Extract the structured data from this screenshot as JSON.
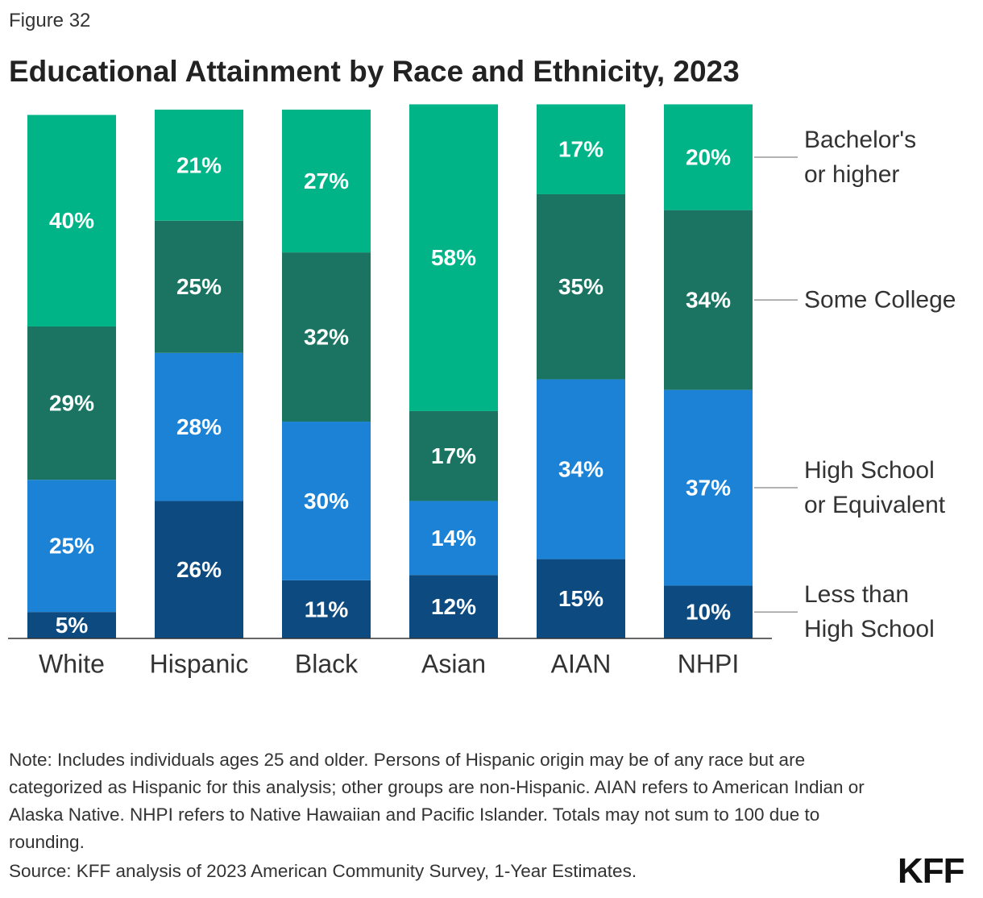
{
  "chart_data": {
    "type": "stacked_bar",
    "figure_label": "Figure 32",
    "title": "Educational Attainment by Race and Ethnicity, 2023",
    "categories": [
      "White",
      "Hispanic",
      "Black",
      "Asian",
      "AIAN",
      "NHPI"
    ],
    "series": [
      {
        "name": "Less than High School",
        "color": "#0c4a80",
        "values": [
          5,
          26,
          11,
          12,
          15,
          10
        ]
      },
      {
        "name": "High School or Equivalent",
        "color": "#1b82d6",
        "values": [
          25,
          28,
          30,
          14,
          34,
          37
        ]
      },
      {
        "name": "Some College",
        "color": "#1a7461",
        "values": [
          29,
          25,
          32,
          17,
          35,
          34
        ]
      },
      {
        "name": "Bachelor's or higher",
        "color": "#00b487",
        "values": [
          40,
          21,
          27,
          58,
          17,
          20
        ]
      }
    ],
    "value_labels": [
      [
        "5%",
        "26%",
        "11%",
        "12%",
        "15%",
        "10%"
      ],
      [
        "25%",
        "28%",
        "30%",
        "14%",
        "34%",
        "37%"
      ],
      [
        "29%",
        "25%",
        "32%",
        "17%",
        "35%",
        "34%"
      ],
      [
        "40%",
        "21%",
        "27%",
        "58%",
        "17%",
        "20%"
      ]
    ],
    "ylim": [
      0,
      100
    ],
    "note": "Note: Includes individuals ages 25 and older. Persons of Hispanic origin may be of any race but are categorized as Hispanic for this analysis; other groups are non-Hispanic. AIAN refers to American Indian or Alaska Native. NHPI refers to Native Hawaiian and Pacific Islander. Totals may not sum to 100 due to rounding.",
    "source": "Source: KFF analysis of 2023 American Community Survey, 1-Year Estimates.",
    "logo": "KFF"
  }
}
